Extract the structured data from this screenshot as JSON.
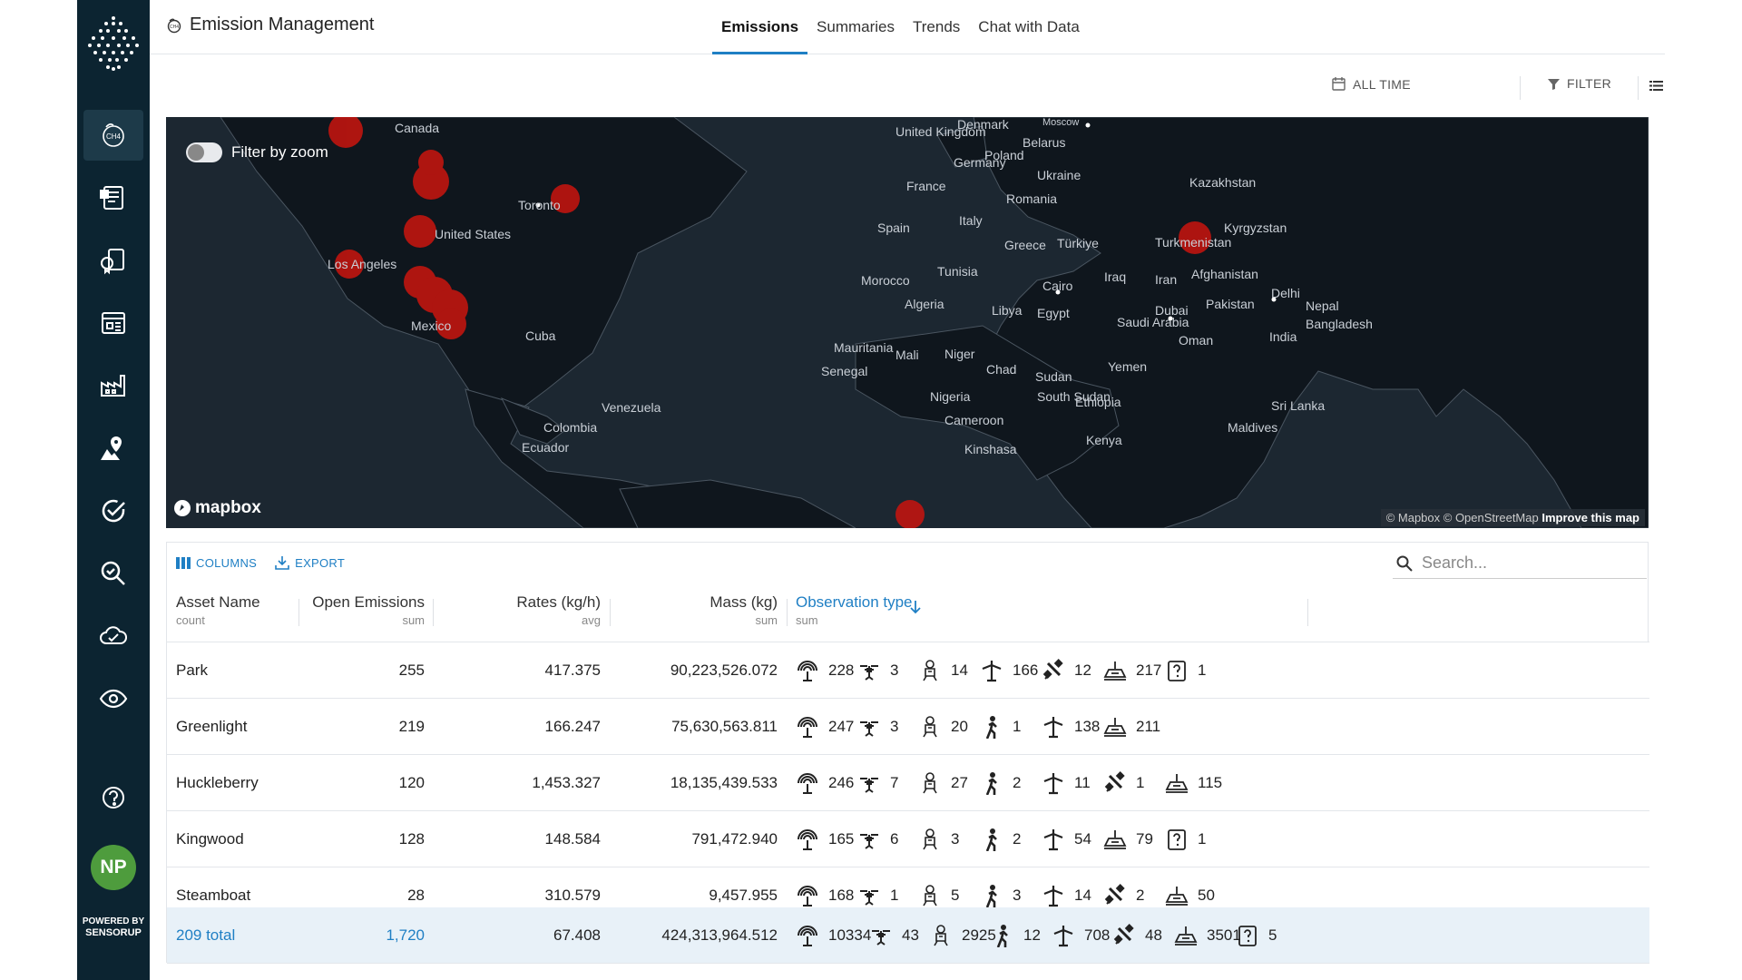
{
  "app": {
    "title": "Emission Management"
  },
  "tabs": [
    {
      "label": "Emissions"
    },
    {
      "label": "Summaries"
    },
    {
      "label": "Trends"
    },
    {
      "label": "Chat with Data"
    }
  ],
  "toolbar": {
    "time_label": "ALL TIME",
    "filter_label": "FILTER"
  },
  "user": {
    "initials": "NP"
  },
  "powered": {
    "line1": "POWERED BY",
    "line2": "SENSORUP"
  },
  "map": {
    "toggle_label": "Filter by zoom",
    "brand": "mapbox",
    "attribution": "© Mapbox © OpenStreetMap",
    "improve": "Improve this map",
    "marker_color": "#c4150f",
    "labels": [
      "Canada",
      "Toronto",
      "United States",
      "Los Angeles",
      "Mexico",
      "Cuba",
      "Venezuela",
      "Colombia",
      "Ecuador",
      "Denmark",
      "United Kingdom",
      "Belarus",
      "Moscow",
      "Poland",
      "Germany",
      "Ukraine",
      "France",
      "Romania",
      "Kazakhstan",
      "Spain",
      "Italy",
      "Greece",
      "Türkiye",
      "Turkmenistan",
      "Kyrgyzstan",
      "Tunisia",
      "Morocco",
      "Algeria",
      "Libya",
      "Cairo",
      "Egypt",
      "Iraq",
      "Iran",
      "Afghanistan",
      "Delhi",
      "Pakistan",
      "Nepal",
      "Dubai",
      "Saudi Arabia",
      "Oman",
      "India",
      "Bangladesh",
      "Mauritania",
      "Mali",
      "Niger",
      "Chad",
      "Sudan",
      "Senegal",
      "Yemen",
      "Nigeria",
      "South Sudan",
      "Ethiopia",
      "Cameroon",
      "Kenya",
      "Sri Lanka",
      "Maldives",
      "Kinshasa"
    ]
  },
  "table": {
    "columns_label": "COLUMNS",
    "export_label": "EXPORT",
    "search_placeholder": "Search...",
    "headers": [
      {
        "title": "Asset Name",
        "sub": "count"
      },
      {
        "title": "Open Emissions",
        "sub": "sum"
      },
      {
        "title": "Rates (kg/h)",
        "sub": "avg"
      },
      {
        "title": "Mass (kg)",
        "sub": "sum"
      },
      {
        "title": "Observation type",
        "sub": "sum"
      }
    ],
    "rows": [
      {
        "name": "Park",
        "open": "255",
        "rate": "417.375",
        "mass": "90,223,526.072",
        "obs": [
          [
            "tower-icon",
            "228"
          ],
          [
            "drone-icon",
            "3"
          ],
          [
            "ogi-camera-icon",
            "14"
          ],
          [
            "aircraft-icon",
            "166"
          ],
          [
            "satellite-icon",
            "12"
          ],
          [
            "fixed-sensor-icon",
            "217"
          ],
          [
            "unknown-icon",
            "1"
          ]
        ]
      },
      {
        "name": "Greenlight",
        "open": "219",
        "rate": "166.247",
        "mass": "75,630,563.811",
        "obs": [
          [
            "tower-icon",
            "247"
          ],
          [
            "drone-icon",
            "3"
          ],
          [
            "ogi-camera-icon",
            "20"
          ],
          [
            "walker-icon",
            "1"
          ],
          [
            "aircraft-icon",
            "138"
          ],
          [
            "fixed-sensor-icon",
            "211"
          ]
        ]
      },
      {
        "name": "Huckleberry",
        "open": "120",
        "rate": "1,453.327",
        "mass": "18,135,439.533",
        "obs": [
          [
            "tower-icon",
            "246"
          ],
          [
            "drone-icon",
            "7"
          ],
          [
            "ogi-camera-icon",
            "27"
          ],
          [
            "walker-icon",
            "2"
          ],
          [
            "aircraft-icon",
            "11"
          ],
          [
            "satellite-icon",
            "1"
          ],
          [
            "fixed-sensor-icon",
            "115"
          ]
        ]
      },
      {
        "name": "Kingwood",
        "open": "128",
        "rate": "148.584",
        "mass": "791,472.940",
        "obs": [
          [
            "tower-icon",
            "165"
          ],
          [
            "drone-icon",
            "6"
          ],
          [
            "ogi-camera-icon",
            "3"
          ],
          [
            "walker-icon",
            "2"
          ],
          [
            "aircraft-icon",
            "54"
          ],
          [
            "fixed-sensor-icon",
            "79"
          ],
          [
            "unknown-icon",
            "1"
          ]
        ]
      },
      {
        "name": "Steamboat",
        "open": "28",
        "rate": "310.579",
        "mass": "9,457.955",
        "obs": [
          [
            "tower-icon",
            "168"
          ],
          [
            "drone-icon",
            "1"
          ],
          [
            "ogi-camera-icon",
            "5"
          ],
          [
            "walker-icon",
            "3"
          ],
          [
            "aircraft-icon",
            "14"
          ],
          [
            "satellite-icon",
            "2"
          ],
          [
            "fixed-sensor-icon",
            "50"
          ]
        ]
      }
    ],
    "total": {
      "name": "209 total",
      "open": "1,720",
      "rate": "67.408",
      "mass": "424,313,964.512",
      "obs": [
        [
          "tower-icon",
          "10334"
        ],
        [
          "drone-icon",
          "43"
        ],
        [
          "ogi-camera-icon",
          "2925"
        ],
        [
          "walker-icon",
          "12"
        ],
        [
          "aircraft-icon",
          "708"
        ],
        [
          "satellite-icon",
          "48"
        ],
        [
          "fixed-sensor-icon",
          "3501"
        ],
        [
          "unknown-icon",
          "5"
        ]
      ]
    }
  }
}
